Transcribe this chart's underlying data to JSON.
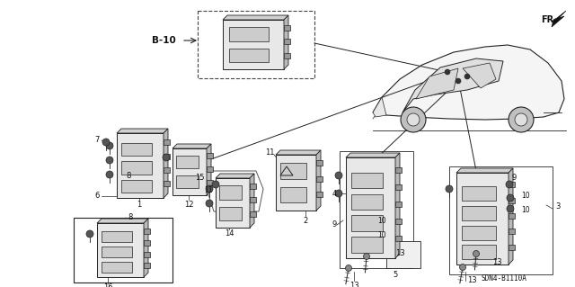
{
  "bg_color": "#ffffff",
  "line_color": "#222222",
  "gray_fill": "#e8e8e8",
  "dark_fill": "#aaaaaa",
  "part_numbers": {
    "B10_label": "B-10",
    "bottom_label": "SDN4-B1110A",
    "fr_label": "FR."
  },
  "fig_w": 6.4,
  "fig_h": 3.19,
  "dpi": 100
}
